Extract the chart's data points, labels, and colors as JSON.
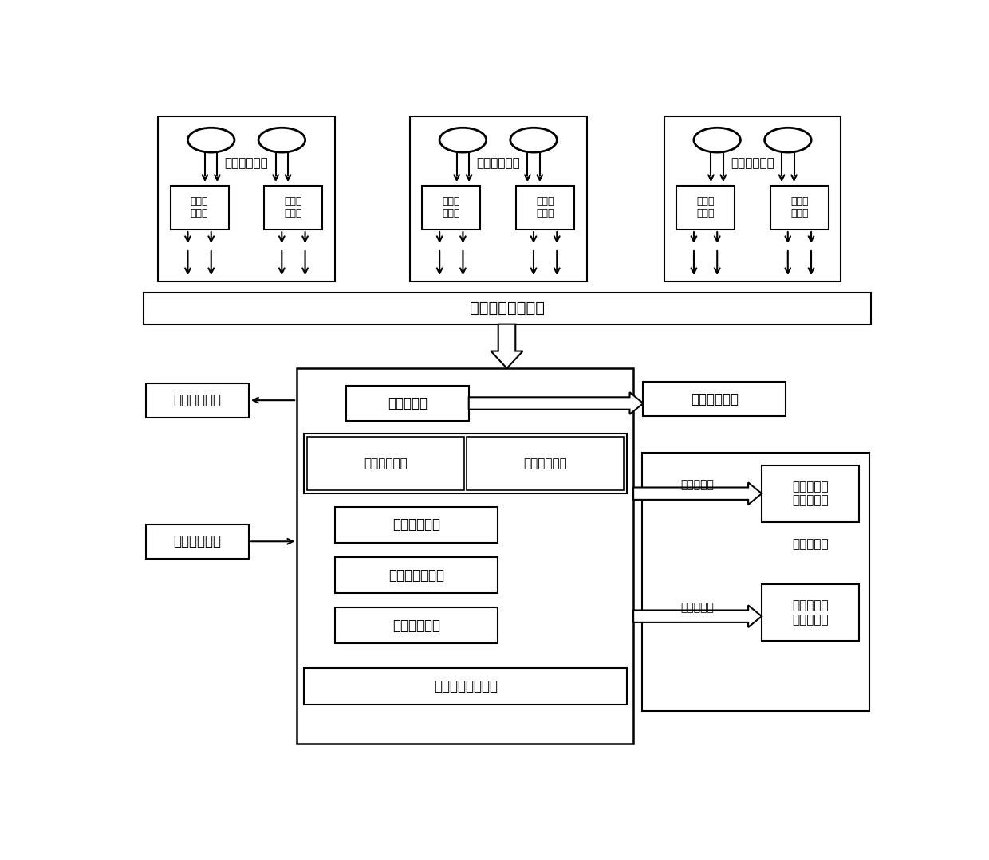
{
  "bg_color": "#ffffff",
  "modules": {
    "qian_label": "前视探测模块",
    "liti_label": "立体探测模块",
    "zhu_label": "沿位探测模块",
    "camera_label": "低照度\n摄像机",
    "video_interface": "视频数据传输接口",
    "power_board": "电源控制板",
    "laser": "激光辅助照明",
    "turn_sensor": "转向传感组件",
    "qian_image_fusion": "前视图像融合",
    "zhou_image_fusion": "周视图像融合",
    "stabilizer": "电子稳像模块",
    "enhance": "增强与透雾模块",
    "signal_overlay": "信号叠加模块",
    "head_pose": "头部姿态检测模块",
    "video_detect": "视频数据检测",
    "left_video": "左视频数据",
    "right_video": "右视频数据",
    "left_display": "左侧光波导\n近眼显示器",
    "right_display": "右侧光波导\n近眼显示器",
    "see_through": "穿透式眼镜"
  }
}
